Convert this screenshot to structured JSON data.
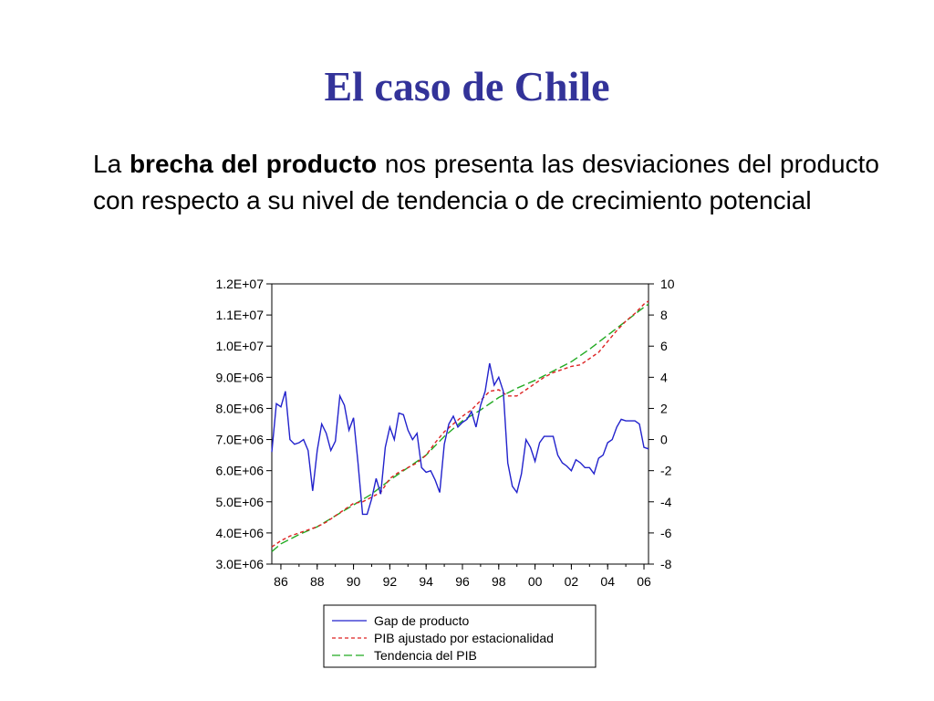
{
  "slide": {
    "title": "El caso de Chile",
    "text_before": "La ",
    "text_bold": "brecha del producto",
    "text_after": " nos presenta las desviaciones del producto con respecto a su nivel de tendencia o de crecimiento potencial"
  },
  "chart_data": {
    "type": "line",
    "x_ticks": [
      "86",
      "88",
      "90",
      "92",
      "94",
      "96",
      "98",
      "00",
      "02",
      "04",
      "06"
    ],
    "xlim": [
      1985.5,
      2006.25
    ],
    "left_axis": {
      "ticks": [
        "3.0E+06",
        "4.0E+06",
        "5.0E+06",
        "6.0E+06",
        "7.0E+06",
        "8.0E+06",
        "9.0E+06",
        "1.0E+07",
        "1.1E+07",
        "1.2E+07"
      ],
      "ylim": [
        3000000,
        12000000
      ]
    },
    "right_axis": {
      "ticks": [
        "-8",
        "-6",
        "-4",
        "-2",
        "0",
        "2",
        "4",
        "6",
        "8",
        "10"
      ],
      "ylim": [
        -8,
        10
      ]
    },
    "legend": {
      "placement": "bottom",
      "entries": [
        "Gap de producto",
        "PIB ajustado por estacionalidad",
        "Tendencia del PIB"
      ]
    },
    "colors": {
      "gap": "#2222cc",
      "pib": "#dd2222",
      "trend": "#22aa22",
      "title": "#333399"
    },
    "series": [
      {
        "name": "Gap de producto",
        "axis": "right",
        "style": "solid",
        "x": [
          1985.5,
          1985.75,
          1986,
          1986.25,
          1986.5,
          1986.75,
          1987,
          1987.25,
          1987.5,
          1987.75,
          1988,
          1988.25,
          1988.5,
          1988.75,
          1989,
          1989.25,
          1989.5,
          1989.75,
          1990,
          1990.25,
          1990.5,
          1990.75,
          1991,
          1991.25,
          1991.5,
          1991.75,
          1992,
          1992.25,
          1992.5,
          1992.75,
          1993,
          1993.25,
          1993.5,
          1993.75,
          1994,
          1994.25,
          1994.5,
          1994.75,
          1995,
          1995.25,
          1995.5,
          1995.75,
          1996,
          1996.25,
          1996.5,
          1996.75,
          1997,
          1997.25,
          1997.5,
          1997.75,
          1998,
          1998.25,
          1998.5,
          1998.75,
          1999,
          1999.25,
          1999.5,
          1999.75,
          2000,
          2000.25,
          2000.5,
          2000.75,
          2001,
          2001.25,
          2001.5,
          2001.75,
          2002,
          2002.25,
          2002.5,
          2002.75,
          2003,
          2003.25,
          2003.5,
          2003.75,
          2004,
          2004.25,
          2004.5,
          2004.75,
          2005,
          2005.25,
          2005.5,
          2005.75,
          2006,
          2006.25
        ],
        "values": [
          -0.8,
          2.3,
          2.1,
          3.1,
          0,
          -0.3,
          -0.2,
          0,
          -0.7,
          -3.3,
          -0.7,
          1,
          0.4,
          -0.7,
          -0.1,
          2.8,
          2.2,
          0.6,
          1.4,
          -1.5,
          -4.8,
          -4.8,
          -3.8,
          -2.5,
          -3.5,
          -0.5,
          0.8,
          0,
          1.7,
          1.6,
          0.6,
          0,
          0.4,
          -1.8,
          -2.1,
          -2,
          -2.6,
          -3.4,
          -0.3,
          1,
          1.5,
          0.8,
          1.1,
          1.3,
          1.8,
          0.8,
          2.2,
          3.1,
          4.9,
          3.5,
          4,
          3.1,
          -1.5,
          -3,
          -3.4,
          -2.2,
          0,
          -0.5,
          -1.4,
          -0.2,
          0.2,
          0.2,
          0.2,
          -1,
          -1.5,
          -1.7,
          -2,
          -1.3,
          -1.5,
          -1.8,
          -1.8,
          -2.2,
          -1.2,
          -1,
          -0.2,
          0,
          0.8,
          1.3,
          1.2,
          1.2,
          1.2,
          1,
          -0.5,
          -0.6
        ]
      },
      {
        "name": "PIB ajustado por estacionalidad",
        "axis": "left",
        "style": "dashed",
        "x": [
          1985.5,
          1986,
          1986.5,
          1987,
          1987.5,
          1988,
          1988.5,
          1989,
          1989.5,
          1990,
          1990.5,
          1991,
          1991.5,
          1992,
          1992.5,
          1993,
          1993.5,
          1994,
          1994.5,
          1995,
          1995.5,
          1996,
          1996.5,
          1997,
          1997.5,
          1998,
          1998.5,
          1999,
          1999.5,
          2000,
          2000.5,
          2001,
          2001.5,
          2002,
          2002.5,
          2003,
          2003.5,
          2004,
          2004.5,
          2005,
          2005.5,
          2006,
          2006.25
        ],
        "values": [
          3550000,
          3750000,
          3900000,
          4000000,
          4100000,
          4200000,
          4350000,
          4550000,
          4750000,
          4950000,
          5000000,
          5150000,
          5300000,
          5750000,
          5950000,
          6100000,
          6250000,
          6500000,
          6900000,
          7250000,
          7500000,
          7750000,
          7950000,
          8250000,
          8550000,
          8600000,
          8400000,
          8400000,
          8600000,
          8800000,
          9000000,
          9150000,
          9250000,
          9350000,
          9400000,
          9600000,
          9800000,
          10150000,
          10500000,
          10800000,
          11050000,
          11350000,
          11450000
        ]
      },
      {
        "name": "Tendencia del PIB",
        "axis": "left",
        "style": "longdash",
        "x": [
          1985.5,
          1986,
          1987,
          1988,
          1989,
          1990,
          1991,
          1992,
          1993,
          1994,
          1995,
          1996,
          1997,
          1998,
          1999,
          2000,
          2001,
          2002,
          2003,
          2004,
          2005,
          2006,
          2006.25
        ],
        "values": [
          3400000,
          3650000,
          3950000,
          4200000,
          4550000,
          4900000,
          5250000,
          5700000,
          6100000,
          6500000,
          7100000,
          7600000,
          7950000,
          8350000,
          8650000,
          8900000,
          9200000,
          9500000,
          9900000,
          10350000,
          10800000,
          11250000,
          11350000
        ]
      }
    ]
  }
}
